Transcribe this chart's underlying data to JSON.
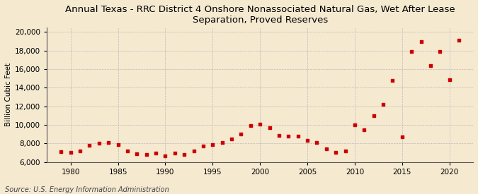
{
  "title": "Annual Texas - RRC District 4 Onshore Nonassociated Natural Gas, Wet After Lease\nSeparation, Proved Reserves",
  "ylabel": "Billion Cubic Feet",
  "source": "Source: U.S. Energy Information Administration",
  "background_color": "#f5e9d0",
  "plot_bg_color": "#f5e9d0",
  "marker_color": "#cc0000",
  "years": [
    1979,
    1980,
    1981,
    1982,
    1983,
    1984,
    1985,
    1986,
    1987,
    1988,
    1989,
    1990,
    1991,
    1992,
    1993,
    1994,
    1995,
    1996,
    1997,
    1998,
    1999,
    2000,
    2001,
    2002,
    2003,
    2004,
    2005,
    2006,
    2007,
    2008,
    2009,
    2010,
    2011,
    2012,
    2013,
    2014,
    2015,
    2016,
    2017,
    2018,
    2019,
    2020,
    2021
  ],
  "values": [
    7100,
    7050,
    7200,
    7800,
    8000,
    8100,
    7900,
    7200,
    6900,
    6800,
    7000,
    6700,
    7000,
    6800,
    7200,
    7700,
    7900,
    8100,
    8500,
    9000,
    9900,
    10100,
    9700,
    8900,
    8800,
    8800,
    8300,
    8100,
    7400,
    7050,
    7200,
    10000,
    9500,
    11000,
    12200,
    14800,
    8700,
    17900,
    19000,
    16400,
    17900,
    14900,
    19100
  ],
  "xlim": [
    1977.5,
    2022.5
  ],
  "ylim": [
    6000,
    20500
  ],
  "yticks": [
    6000,
    8000,
    10000,
    12000,
    14000,
    16000,
    18000,
    20000
  ],
  "xticks": [
    1980,
    1985,
    1990,
    1995,
    2000,
    2005,
    2010,
    2015,
    2020
  ],
  "grid_color": "#bbbbbb",
  "title_fontsize": 9.5,
  "axis_fontsize": 7.5,
  "source_fontsize": 7.0
}
